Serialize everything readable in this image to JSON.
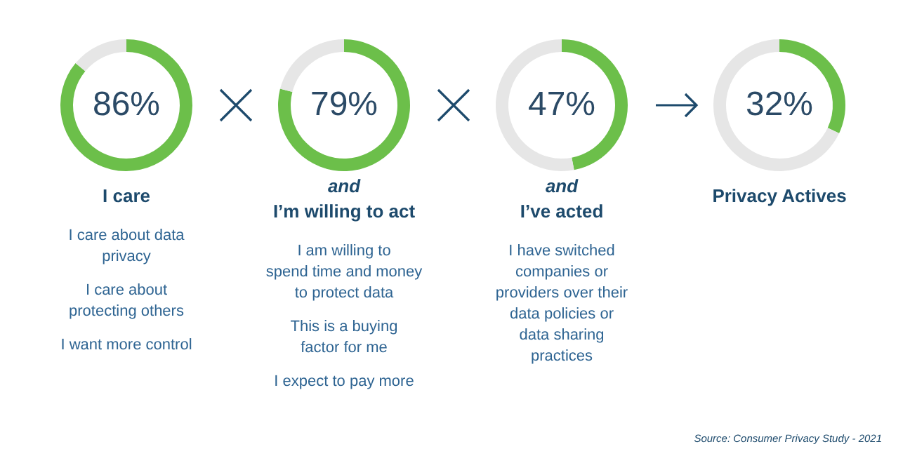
{
  "chart_data": [
    {
      "type": "donut",
      "title": "I care",
      "categories": [
        null,
        null
      ],
      "values": [
        86,
        14
      ],
      "colors": [
        "#6cbf4a",
        "#e6e6e6"
      ],
      "value_labels": [
        "86%",
        null
      ],
      "annotations": [
        "I care about data privacy",
        "I care about protecting others",
        "I want more control"
      ]
    },
    {
      "type": "donut",
      "subtitle": "and",
      "title": "I’m willing to act",
      "categories": [
        null,
        null
      ],
      "values": [
        79,
        21
      ],
      "colors": [
        "#6cbf4a",
        "#e6e6e6"
      ],
      "value_labels": [
        "79%",
        null
      ],
      "annotations": [
        "I am willing to spend time and money to protect data",
        "This is a buying factor for me",
        "I expect to pay more"
      ]
    },
    {
      "type": "donut",
      "subtitle": "and",
      "title": "I’ve acted",
      "categories": [
        null,
        null
      ],
      "values": [
        47,
        53
      ],
      "colors": [
        "#6cbf4a",
        "#e6e6e6"
      ],
      "value_labels": [
        "47%",
        null
      ],
      "annotations": [
        "I have switched companies or providers over their data policies or data sharing practices"
      ]
    },
    {
      "type": "donut",
      "title": "Privacy Actives",
      "categories": [
        null,
        null
      ],
      "values": [
        32,
        68
      ],
      "colors": [
        "#6cbf4a",
        "#e6e6e6"
      ],
      "value_labels": [
        "32%",
        null
      ],
      "annotations": [
        "Source: Consumer Privacy Study - 2021"
      ]
    }
  ]
}
